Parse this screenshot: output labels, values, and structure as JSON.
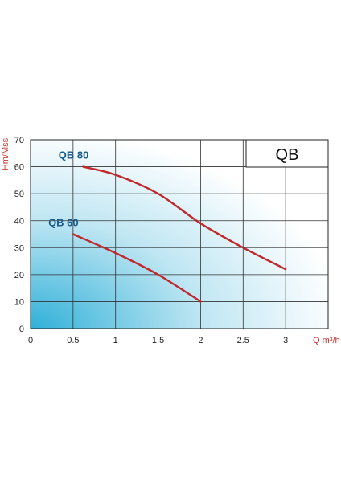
{
  "chart_data": {
    "type": "line",
    "title": "",
    "model_label": "QB",
    "xlabel": "Q m³/h",
    "ylabel": "Hm/Mss",
    "xlim": [
      0,
      3.5
    ],
    "ylim": [
      0,
      70
    ],
    "x_ticks": [
      {
        "value": 0,
        "label": "0"
      },
      {
        "value": 0.5,
        "label": "0.5"
      },
      {
        "value": 1,
        "label": "1"
      },
      {
        "value": 1.5,
        "label": "1.5"
      },
      {
        "value": 2,
        "label": "2"
      },
      {
        "value": 2.5,
        "label": "2.5"
      },
      {
        "value": 3,
        "label": "3"
      }
    ],
    "y_ticks": [
      {
        "value": 0,
        "label": "0"
      },
      {
        "value": 10,
        "label": "10"
      },
      {
        "value": 20,
        "label": "20"
      },
      {
        "value": 30,
        "label": "30"
      },
      {
        "value": 40,
        "label": "40"
      },
      {
        "value": 50,
        "label": "50"
      },
      {
        "value": 60,
        "label": "60"
      },
      {
        "value": 70,
        "label": "70"
      }
    ],
    "grid": true,
    "series": [
      {
        "name": "QB 80",
        "color": "#c0282c",
        "x": [
          0.62,
          1.0,
          1.5,
          2.0,
          2.5,
          3.0
        ],
        "y": [
          60,
          57,
          50,
          39,
          30,
          22
        ]
      },
      {
        "name": "QB 60",
        "color": "#c0282c",
        "x": [
          0.5,
          1.0,
          1.5,
          2.0
        ],
        "y": [
          35,
          28,
          20,
          10
        ]
      }
    ]
  }
}
